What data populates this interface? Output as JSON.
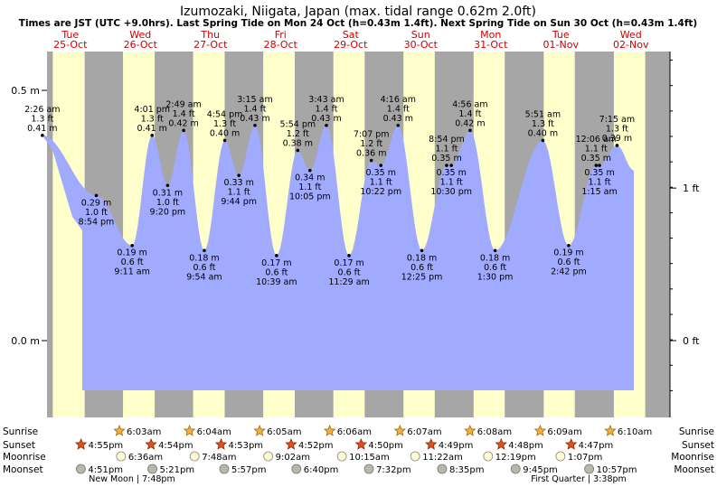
{
  "title": "Izumozaki, Niigata, Japan (max. tidal range 0.62m 2.0ft)",
  "subtitle": "Times are JST (UTC +9.0hrs). Last Spring Tide on Mon 24 Oct (h=0.43m 1.4ft). Next Spring Tide on Sun 30 Oct (h=0.43m 1.4ft)",
  "colors": {
    "day": "#ffffcc",
    "night": "#a6a6a6",
    "water": "#a0aaff",
    "day_label": "#cc0000",
    "ink": "#000000"
  },
  "chart_data": {
    "type": "area",
    "title": "Izumozaki, Niigata, Japan (max. tidal range 0.62m 2.0ft)",
    "y_unit_left": "m",
    "y_unit_right": "ft",
    "yticks_left": [
      {
        "value": 0.5,
        "label": "0.5 m"
      },
      {
        "value": 0.0,
        "label": "0.0 m"
      }
    ],
    "yticks_right": [
      {
        "value": 0.3048,
        "label": "1 ft"
      },
      {
        "value": 0.0,
        "label": "0 ft"
      }
    ],
    "days": [
      {
        "dow": "Tue",
        "date": "25-Oct"
      },
      {
        "dow": "Wed",
        "date": "26-Oct"
      },
      {
        "dow": "Thu",
        "date": "27-Oct"
      },
      {
        "dow": "Fri",
        "date": "28-Oct"
      },
      {
        "dow": "Sat",
        "date": "29-Oct"
      },
      {
        "dow": "Sun",
        "date": "30-Oct"
      },
      {
        "dow": "Mon",
        "date": "31-Oct"
      },
      {
        "dow": "Tue",
        "date": "01-Nov"
      },
      {
        "dow": "Wed",
        "date": "02-Nov"
      }
    ],
    "tides": [
      {
        "kind": "high",
        "time": "2:26 am",
        "m": "0.41 m",
        "ft": "1.3 ft",
        "value": 0.41,
        "day": 0,
        "hour": 2.43
      },
      {
        "kind": "low",
        "time": "8:54 pm",
        "m": "0.29 m",
        "ft": "1.0 ft",
        "value": 0.29,
        "day": 0,
        "hour": 20.9
      },
      {
        "kind": "low",
        "time": "9:11 am",
        "m": "0.19 m",
        "ft": "0.6 ft",
        "value": 0.19,
        "day": 1,
        "hour": 9.18
      },
      {
        "kind": "high",
        "time": "4:01 pm",
        "m": "0.41 m",
        "ft": "1.3 ft",
        "value": 0.41,
        "day": 1,
        "hour": 16.02
      },
      {
        "kind": "low",
        "time": "9:20 pm",
        "m": "0.31 m",
        "ft": "1.0 ft",
        "value": 0.31,
        "day": 1,
        "hour": 21.33
      },
      {
        "kind": "high",
        "time": "2:49 am",
        "m": "0.42 m",
        "ft": "1.4 ft",
        "value": 0.42,
        "day": 2,
        "hour": 2.82
      },
      {
        "kind": "low",
        "time": "9:54 am",
        "m": "0.18 m",
        "ft": "0.6 ft",
        "value": 0.18,
        "day": 2,
        "hour": 9.9
      },
      {
        "kind": "high",
        "time": "4:54 pm",
        "m": "0.40 m",
        "ft": "1.3 ft",
        "value": 0.4,
        "day": 2,
        "hour": 16.9
      },
      {
        "kind": "low",
        "time": "9:44 pm",
        "m": "0.33 m",
        "ft": "1.1 ft",
        "value": 0.33,
        "day": 2,
        "hour": 21.73
      },
      {
        "kind": "high",
        "time": "3:15 am",
        "m": "0.43 m",
        "ft": "1.4 ft",
        "value": 0.43,
        "day": 3,
        "hour": 3.25
      },
      {
        "kind": "low",
        "time": "10:39 am",
        "m": "0.17 m",
        "ft": "0.6 ft",
        "value": 0.17,
        "day": 3,
        "hour": 10.65
      },
      {
        "kind": "high",
        "time": "5:54 pm",
        "m": "0.38 m",
        "ft": "1.2 ft",
        "value": 0.38,
        "day": 3,
        "hour": 17.9
      },
      {
        "kind": "low",
        "time": "10:05 pm",
        "m": "0.34 m",
        "ft": "1.1 ft",
        "value": 0.34,
        "day": 3,
        "hour": 22.08
      },
      {
        "kind": "high",
        "time": "3:43 am",
        "m": "0.43 m",
        "ft": "1.4 ft",
        "value": 0.43,
        "day": 4,
        "hour": 3.72
      },
      {
        "kind": "low",
        "time": "11:29 am",
        "m": "0.17 m",
        "ft": "0.6 ft",
        "value": 0.17,
        "day": 4,
        "hour": 11.48
      },
      {
        "kind": "high",
        "time": "7:07 pm",
        "m": "0.36 m",
        "ft": "1.2 ft",
        "value": 0.36,
        "day": 4,
        "hour": 19.12
      },
      {
        "kind": "low",
        "time": "10:22 pm",
        "m": "0.35 m",
        "ft": "1.1 ft",
        "value": 0.35,
        "day": 4,
        "hour": 22.37
      },
      {
        "kind": "high",
        "time": "4:16 am",
        "m": "0.43 m",
        "ft": "1.4 ft",
        "value": 0.43,
        "day": 5,
        "hour": 4.27
      },
      {
        "kind": "low",
        "time": "12:25 pm",
        "m": "0.18 m",
        "ft": "0.6 ft",
        "value": 0.18,
        "day": 5,
        "hour": 12.42
      },
      {
        "kind": "high",
        "time": "8:54 pm",
        "m": "0.35 m",
        "ft": "1.1 ft",
        "value": 0.35,
        "day": 5,
        "hour": 20.9
      },
      {
        "kind": "low",
        "time": "10:30 pm",
        "m": "0.35 m",
        "ft": "1.1 ft",
        "value": 0.35,
        "day": 5,
        "hour": 22.5
      },
      {
        "kind": "high",
        "time": "4:56 am",
        "m": "0.42 m",
        "ft": "1.4 ft",
        "value": 0.42,
        "day": 6,
        "hour": 4.93
      },
      {
        "kind": "low",
        "time": "1:30 pm",
        "m": "0.18 m",
        "ft": "0.6 ft",
        "value": 0.18,
        "day": 6,
        "hour": 13.5
      },
      {
        "kind": "high",
        "time": "5:51 am",
        "m": "0.40 m",
        "ft": "1.3 ft",
        "value": 0.4,
        "day": 7,
        "hour": 5.85
      },
      {
        "kind": "low",
        "time": "2:42 pm",
        "m": "0.19 m",
        "ft": "0.6 ft",
        "value": 0.19,
        "day": 7,
        "hour": 14.7
      },
      {
        "kind": "high",
        "time": "12:06 am",
        "m": "0.35 m",
        "ft": "1.1 ft",
        "value": 0.35,
        "day": 8,
        "hour": 0.1
      },
      {
        "kind": "low",
        "time": "1:15 am",
        "m": "0.35 m",
        "ft": "1.1 ft",
        "value": 0.35,
        "day": 8,
        "hour": 1.25
      },
      {
        "kind": "high",
        "time": "7:15 am",
        "m": "0.39 m",
        "ft": "1.3 ft",
        "value": 0.39,
        "day": 8,
        "hour": 7.25
      }
    ],
    "sun": {
      "sunrise": [
        {
          "day": 1,
          "hour": 6.05,
          "time": "6:03am"
        },
        {
          "day": 2,
          "hour": 6.07,
          "time": "6:04am"
        },
        {
          "day": 3,
          "hour": 6.08,
          "time": "6:05am"
        },
        {
          "day": 4,
          "hour": 6.1,
          "time": "6:06am"
        },
        {
          "day": 5,
          "hour": 6.12,
          "time": "6:07am"
        },
        {
          "day": 6,
          "hour": 6.13,
          "time": "6:08am"
        },
        {
          "day": 7,
          "hour": 6.15,
          "time": "6:09am"
        },
        {
          "day": 8,
          "hour": 6.17,
          "time": "6:10am"
        }
      ],
      "sunset": [
        {
          "day": 0,
          "hour": 16.92,
          "time": "4:55pm"
        },
        {
          "day": 1,
          "hour": 16.9,
          "time": "4:54pm"
        },
        {
          "day": 2,
          "hour": 16.88,
          "time": "4:53pm"
        },
        {
          "day": 3,
          "hour": 16.87,
          "time": "4:52pm"
        },
        {
          "day": 4,
          "hour": 16.83,
          "time": "4:50pm"
        },
        {
          "day": 5,
          "hour": 16.82,
          "time": "4:49pm"
        },
        {
          "day": 6,
          "hour": 16.8,
          "time": "4:48pm"
        },
        {
          "day": 7,
          "hour": 16.78,
          "time": "4:47pm"
        }
      ]
    },
    "moon": {
      "moonrise": [
        {
          "day": 1,
          "hour": 6.6,
          "time": "6:36am"
        },
        {
          "day": 2,
          "hour": 7.8,
          "time": "7:48am"
        },
        {
          "day": 3,
          "hour": 9.03,
          "time": "9:02am"
        },
        {
          "day": 4,
          "hour": 10.25,
          "time": "10:15am"
        },
        {
          "day": 5,
          "hour": 11.37,
          "time": "11:22am"
        },
        {
          "day": 6,
          "hour": 12.32,
          "time": "12:19pm"
        },
        {
          "day": 7,
          "hour": 13.12,
          "time": "1:07pm"
        }
      ],
      "moonset": [
        {
          "day": 0,
          "hour": 16.85,
          "time": "4:51pm"
        },
        {
          "day": 1,
          "hour": 17.35,
          "time": "5:21pm"
        },
        {
          "day": 2,
          "hour": 17.95,
          "time": "5:57pm"
        },
        {
          "day": 3,
          "hour": 18.67,
          "time": "6:40pm"
        },
        {
          "day": 4,
          "hour": 19.53,
          "time": "7:32pm"
        },
        {
          "day": 5,
          "hour": 20.58,
          "time": "8:35pm"
        },
        {
          "day": 6,
          "hour": 21.75,
          "time": "9:45pm"
        },
        {
          "day": 7,
          "hour": 22.95,
          "time": "10:57pm"
        }
      ],
      "phases": [
        {
          "label": "New Moon | 7:48pm"
        },
        {
          "label": "First Quarter | 3:38pm"
        }
      ]
    },
    "row_labels": {
      "sunrise": "Sunrise",
      "sunset": "Sunset",
      "moonrise": "Moonrise",
      "moonset": "Moonset"
    }
  }
}
